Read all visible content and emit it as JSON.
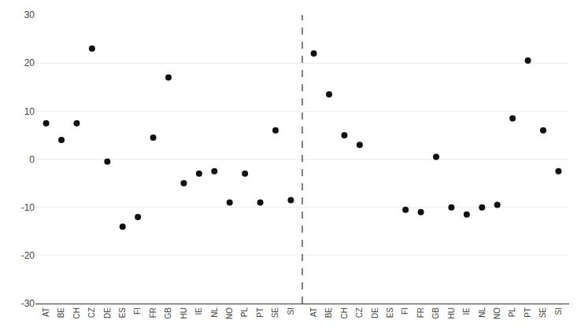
{
  "chart_data": {
    "type": "scatter",
    "categories": [
      "AT",
      "BE",
      "CH",
      "CZ",
      "DE",
      "ES",
      "FI",
      "FR",
      "GB",
      "HU",
      "IE",
      "NL",
      "NO",
      "PL",
      "PT",
      "SE",
      "SI",
      "AT",
      "BE",
      "CH",
      "CZ",
      "DE",
      "ES",
      "FI",
      "FR",
      "GB",
      "HU",
      "IE",
      "NL",
      "NO",
      "PL",
      "PT",
      "SE",
      "SI"
    ],
    "values": [
      7.5,
      4.0,
      7.5,
      23.0,
      -0.5,
      -14.0,
      -12.0,
      4.5,
      17.0,
      -5.0,
      -3.0,
      -2.5,
      -9.0,
      -3.0,
      -9.0,
      6.0,
      -8.5,
      22.0,
      13.5,
      5.0,
      3.0,
      null,
      null,
      -10.5,
      -11.0,
      0.5,
      -10.0,
      -11.5,
      -10.0,
      -9.5,
      8.5,
      20.5,
      6.0,
      -2.5
    ],
    "color": "#111111",
    "ylim": [
      -30,
      30
    ],
    "yticks": [
      -30,
      -20,
      -10,
      0,
      10,
      20,
      30
    ],
    "grid": true
  }
}
